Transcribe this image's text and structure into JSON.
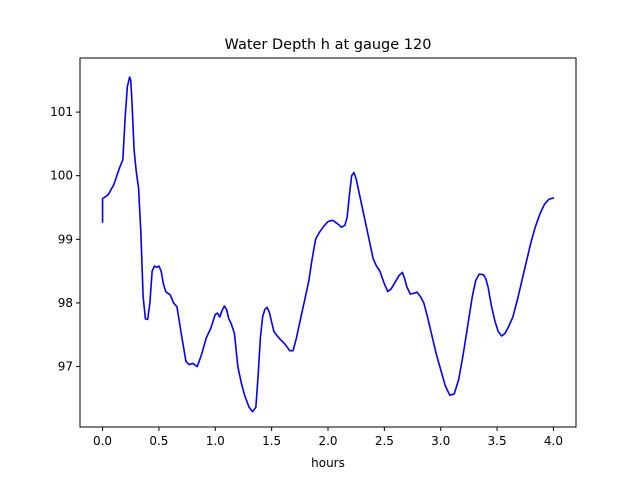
{
  "chart_data": {
    "type": "line",
    "title": "Water Depth h at gauge 120",
    "xlabel": "hours",
    "ylabel": "",
    "xlim": [
      -0.2,
      4.2
    ],
    "ylim": [
      96.05,
      101.85
    ],
    "xticks": [
      0.0,
      0.5,
      1.0,
      1.5,
      2.0,
      2.5,
      3.0,
      3.5,
      4.0
    ],
    "xtick_labels": [
      "0.0",
      "0.5",
      "1.0",
      "1.5",
      "2.0",
      "2.5",
      "3.0",
      "3.5",
      "4.0"
    ],
    "yticks": [
      97,
      98,
      99,
      100,
      101
    ],
    "ytick_labels": [
      "97",
      "98",
      "99",
      "100",
      "101"
    ],
    "grid": false,
    "series": [
      {
        "color": "#0000ff",
        "x": [
          0.0,
          0.0,
          0.05,
          0.1,
          0.15,
          0.18,
          0.2,
          0.22,
          0.24,
          0.25,
          0.26,
          0.28,
          0.3,
          0.32,
          0.34,
          0.36,
          0.38,
          0.4,
          0.42,
          0.44,
          0.46,
          0.48,
          0.5,
          0.52,
          0.54,
          0.56,
          0.58,
          0.6,
          0.63,
          0.66,
          0.7,
          0.74,
          0.77,
          0.8,
          0.84,
          0.88,
          0.92,
          0.96,
          1.0,
          1.02,
          1.04,
          1.06,
          1.08,
          1.1,
          1.12,
          1.14,
          1.17,
          1.2,
          1.23,
          1.26,
          1.3,
          1.33,
          1.36,
          1.38,
          1.4,
          1.42,
          1.44,
          1.46,
          1.48,
          1.5,
          1.52,
          1.55,
          1.58,
          1.62,
          1.66,
          1.69,
          1.72,
          1.76,
          1.8,
          1.83,
          1.86,
          1.89,
          1.92,
          1.96,
          2.0,
          2.04,
          2.08,
          2.12,
          2.15,
          2.17,
          2.19,
          2.21,
          2.23,
          2.25,
          2.28,
          2.31,
          2.34,
          2.37,
          2.4,
          2.43,
          2.46,
          2.48,
          2.5,
          2.53,
          2.56,
          2.6,
          2.63,
          2.66,
          2.68,
          2.7,
          2.73,
          2.76,
          2.79,
          2.82,
          2.85,
          2.88,
          2.92,
          2.96,
          3.0,
          3.04,
          3.08,
          3.12,
          3.16,
          3.2,
          3.24,
          3.28,
          3.31,
          3.34,
          3.36,
          3.38,
          3.4,
          3.42,
          3.45,
          3.48,
          3.51,
          3.54,
          3.57,
          3.6,
          3.64,
          3.68,
          3.72,
          3.76,
          3.8,
          3.84,
          3.88,
          3.92,
          3.96,
          4.0
        ],
        "y": [
          99.27,
          99.64,
          99.7,
          99.86,
          100.12,
          100.25,
          100.9,
          101.4,
          101.55,
          101.5,
          101.2,
          100.4,
          100.05,
          99.8,
          99.1,
          98.1,
          97.75,
          97.74,
          98.0,
          98.5,
          98.58,
          98.56,
          98.58,
          98.5,
          98.3,
          98.18,
          98.15,
          98.13,
          98.0,
          97.94,
          97.5,
          97.08,
          97.03,
          97.05,
          97.0,
          97.2,
          97.45,
          97.6,
          97.82,
          97.84,
          97.78,
          97.88,
          97.95,
          97.9,
          97.75,
          97.68,
          97.52,
          97.0,
          96.75,
          96.55,
          96.36,
          96.29,
          96.36,
          96.85,
          97.45,
          97.78,
          97.9,
          97.93,
          97.85,
          97.7,
          97.55,
          97.48,
          97.42,
          97.35,
          97.25,
          97.25,
          97.45,
          97.78,
          98.1,
          98.35,
          98.7,
          99.0,
          99.1,
          99.2,
          99.28,
          99.3,
          99.25,
          99.19,
          99.22,
          99.35,
          99.7,
          100.0,
          100.05,
          99.95,
          99.7,
          99.45,
          99.2,
          98.95,
          98.7,
          98.58,
          98.5,
          98.4,
          98.3,
          98.18,
          98.22,
          98.34,
          98.43,
          98.48,
          98.38,
          98.25,
          98.14,
          98.15,
          98.17,
          98.1,
          98.0,
          97.8,
          97.5,
          97.2,
          96.95,
          96.7,
          96.55,
          96.57,
          96.8,
          97.2,
          97.65,
          98.1,
          98.35,
          98.45,
          98.45,
          98.44,
          98.38,
          98.25,
          97.95,
          97.72,
          97.55,
          97.48,
          97.52,
          97.62,
          97.78,
          98.05,
          98.35,
          98.65,
          98.95,
          99.2,
          99.4,
          99.55,
          99.63,
          99.65
        ]
      }
    ]
  }
}
